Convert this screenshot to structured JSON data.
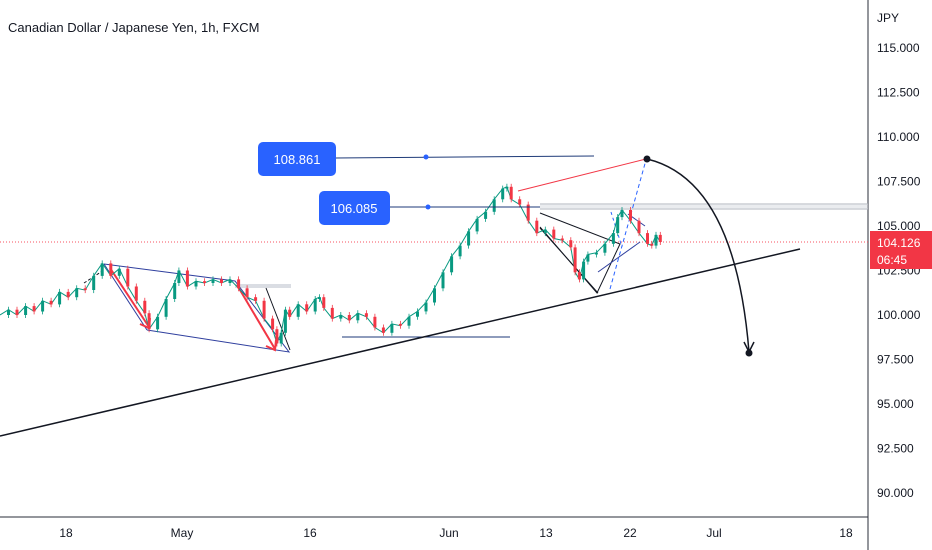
{
  "header": {
    "title": "Canadian Dollar / Japanese Yen, 1h, FXCM"
  },
  "chart_data": {
    "type": "line",
    "symbol": "CADJPY",
    "timeframe": "1h",
    "source": "FXCM",
    "currency_label": "JPY",
    "y_ticks": [
      "115.000",
      "112.500",
      "110.000",
      "107.500",
      "105.000",
      "102.500",
      "100.000",
      "97.500",
      "95.000",
      "92.500",
      "90.000"
    ],
    "x_ticks": [
      "18",
      "May",
      "16",
      "Jun",
      "13",
      "22",
      "Jul",
      "18"
    ],
    "ylim": [
      88.5,
      116.5
    ],
    "current_price": "104.126",
    "countdown": "06:45",
    "annotations": [
      {
        "label": "108.861",
        "value": 108.861
      },
      {
        "label": "106.085",
        "value": 106.085
      }
    ],
    "series": [
      {
        "values": [
          [
            0,
            100.0
          ],
          [
            2,
            100.3
          ],
          [
            4,
            100.0
          ],
          [
            6,
            100.5
          ],
          [
            8,
            100.2
          ],
          [
            10,
            100.8
          ],
          [
            12,
            100.6
          ],
          [
            14,
            101.3
          ],
          [
            16,
            101.0
          ],
          [
            18,
            101.5
          ],
          [
            20,
            101.4
          ],
          [
            22,
            102.2
          ],
          [
            24,
            102.9
          ],
          [
            26,
            102.2
          ],
          [
            28,
            102.6
          ],
          [
            30,
            101.6
          ],
          [
            32,
            100.8
          ],
          [
            34,
            100.1
          ],
          [
            35,
            99.2
          ],
          [
            37,
            99.9
          ],
          [
            39,
            100.9
          ],
          [
            41,
            101.8
          ],
          [
            42,
            102.5
          ],
          [
            44,
            101.6
          ],
          [
            46,
            101.9
          ],
          [
            48,
            101.8
          ],
          [
            50,
            102.0
          ],
          [
            52,
            101.8
          ],
          [
            54,
            102.0
          ],
          [
            56,
            101.5
          ],
          [
            58,
            101.0
          ],
          [
            60,
            100.8
          ],
          [
            62,
            99.8
          ],
          [
            64,
            99.2
          ],
          [
            65,
            98.4
          ],
          [
            66,
            99.0
          ],
          [
            67,
            100.3
          ],
          [
            68,
            99.9
          ],
          [
            70,
            100.6
          ],
          [
            72,
            100.2
          ],
          [
            74,
            100.9
          ],
          [
            75,
            101.0
          ],
          [
            76,
            100.4
          ],
          [
            78,
            99.8
          ],
          [
            80,
            100.0
          ],
          [
            82,
            99.7
          ],
          [
            84,
            100.1
          ],
          [
            86,
            99.9
          ],
          [
            88,
            99.3
          ],
          [
            90,
            99.0
          ],
          [
            92,
            99.5
          ],
          [
            94,
            99.4
          ],
          [
            96,
            99.9
          ],
          [
            98,
            100.2
          ],
          [
            100,
            100.7
          ],
          [
            102,
            101.5
          ],
          [
            104,
            102.4
          ],
          [
            106,
            103.3
          ],
          [
            108,
            103.9
          ],
          [
            110,
            104.7
          ],
          [
            112,
            105.4
          ],
          [
            114,
            105.8
          ],
          [
            116,
            106.5
          ],
          [
            118,
            107.1
          ],
          [
            119,
            107.2
          ],
          [
            120,
            106.5
          ],
          [
            122,
            106.2
          ],
          [
            124,
            105.3
          ],
          [
            126,
            104.6
          ],
          [
            128,
            104.8
          ],
          [
            130,
            104.3
          ],
          [
            132,
            104.2
          ],
          [
            134,
            103.8
          ],
          [
            135,
            102.4
          ],
          [
            136,
            102.0
          ],
          [
            137,
            103.0
          ],
          [
            138,
            103.4
          ],
          [
            140,
            103.5
          ],
          [
            142,
            104.0
          ],
          [
            144,
            104.6
          ],
          [
            145,
            105.5
          ],
          [
            146,
            105.9
          ],
          [
            148,
            105.3
          ],
          [
            150,
            104.6
          ],
          [
            152,
            104.0
          ],
          [
            153,
            103.9
          ],
          [
            154,
            104.5
          ],
          [
            155,
            104.1
          ]
        ]
      }
    ]
  }
}
